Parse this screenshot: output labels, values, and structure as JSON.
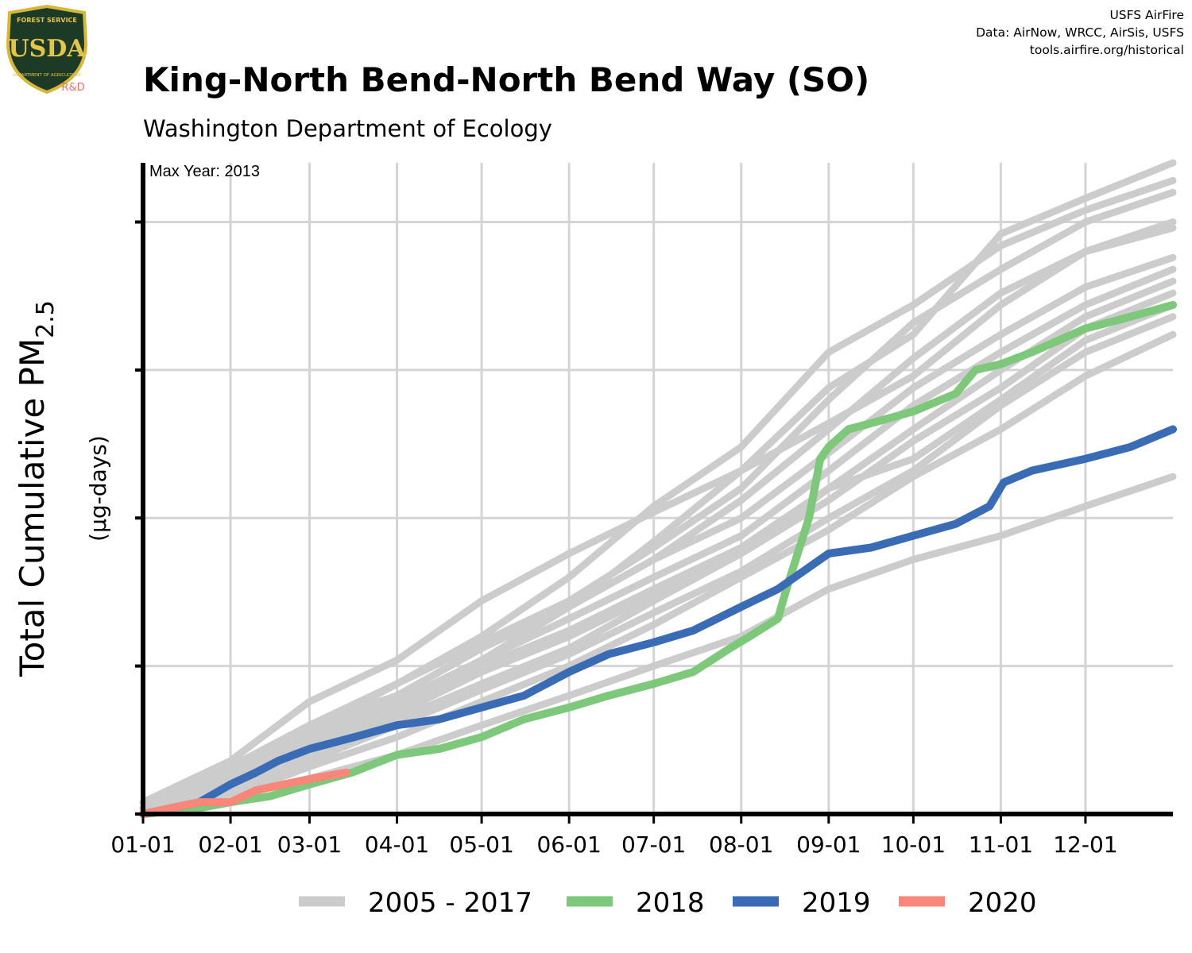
{
  "header": {
    "title": "King-North Bend-North Bend Way (SO)",
    "subtitle": "Washington Department of Ecology",
    "credits": [
      "USFS AirFire",
      "Data: AirNow, WRCC, AirSis, USFS",
      "tools.airfire.org/historical"
    ]
  },
  "logo": {
    "top_text": "FOREST SERVICE",
    "initials": "USDA",
    "bottom_text": "DEPARTMENT OF AGRICULTURE",
    "tag": "R&D"
  },
  "colors": {
    "historical": "#cccccc",
    "y2018": "#7dc87a",
    "y2019": "#3a6bb5",
    "y2020": "#f8877a",
    "axis": "#000000",
    "grid": "#d4d4d4"
  },
  "chart_data": {
    "type": "line",
    "title": "King-North Bend-North Bend Way (SO)",
    "subtitle": "Washington Department of Ecology",
    "ylabel_main": "Total Cumulative PM",
    "ylabel_sub": "2.5",
    "ylabel_units": "(µg-days)",
    "annotation": "Max Year: 2013",
    "x_tick_labels": [
      "01-01",
      "02-01",
      "03-01",
      "04-01",
      "05-01",
      "06-01",
      "07-01",
      "08-01",
      "09-01",
      "10-01",
      "11-01",
      "12-01"
    ],
    "x_tick_days": [
      0,
      31,
      59,
      90,
      120,
      151,
      181,
      212,
      243,
      273,
      304,
      334
    ],
    "x_range_days": [
      0,
      365
    ],
    "y_range": [
      0,
      1.1
    ],
    "y_grid": [
      0.25,
      0.5,
      0.75,
      1.0
    ],
    "y_tick_labels_shown": false,
    "grid": true,
    "legend_position": "bottom",
    "legend": [
      "2005 - 2017",
      "2018",
      "2019",
      "2020"
    ],
    "series": [
      {
        "name": "2005 - 2017",
        "group": "historical",
        "x": [
          0,
          31,
          59,
          90,
          120,
          151,
          181,
          212,
          243,
          273,
          304,
          334,
          365
        ],
        "y": [
          0.02,
          0.09,
          0.19,
          0.26,
          0.36,
          0.44,
          0.51,
          0.58,
          0.72,
          0.81,
          0.98,
          1.04,
          1.1
        ]
      },
      {
        "name": "2005 - 2017",
        "group": "historical",
        "x": [
          0,
          31,
          59,
          90,
          120,
          151,
          181,
          212,
          243,
          273,
          304,
          334,
          365
        ],
        "y": [
          0.01,
          0.08,
          0.15,
          0.22,
          0.3,
          0.4,
          0.52,
          0.62,
          0.78,
          0.86,
          0.96,
          1.02,
          1.07
        ]
      },
      {
        "name": "2005 - 2017",
        "group": "historical",
        "x": [
          0,
          31,
          59,
          90,
          120,
          151,
          181,
          212,
          243,
          273,
          304,
          334,
          365
        ],
        "y": [
          0.01,
          0.07,
          0.14,
          0.22,
          0.29,
          0.36,
          0.45,
          0.55,
          0.7,
          0.83,
          0.92,
          1.0,
          1.05
        ]
      },
      {
        "name": "2005 - 2017",
        "group": "historical",
        "x": [
          0,
          31,
          59,
          90,
          120,
          151,
          181,
          212,
          243,
          273,
          304,
          334,
          365
        ],
        "y": [
          0.01,
          0.07,
          0.15,
          0.2,
          0.28,
          0.35,
          0.46,
          0.58,
          0.66,
          0.74,
          0.86,
          0.95,
          1.0
        ]
      },
      {
        "name": "2005 - 2017",
        "group": "historical",
        "x": [
          0,
          31,
          59,
          90,
          120,
          151,
          181,
          212,
          243,
          273,
          304,
          334,
          365
        ],
        "y": [
          0.01,
          0.06,
          0.13,
          0.2,
          0.28,
          0.35,
          0.43,
          0.53,
          0.65,
          0.77,
          0.88,
          0.95,
          0.99
        ]
      },
      {
        "name": "2005 - 2017",
        "group": "historical",
        "x": [
          0,
          31,
          59,
          90,
          120,
          151,
          181,
          212,
          243,
          273,
          304,
          334,
          365
        ],
        "y": [
          0.01,
          0.06,
          0.12,
          0.19,
          0.26,
          0.35,
          0.43,
          0.5,
          0.61,
          0.72,
          0.81,
          0.89,
          0.94
        ]
      },
      {
        "name": "2005 - 2017",
        "group": "historical",
        "x": [
          0,
          31,
          59,
          90,
          120,
          151,
          181,
          212,
          243,
          273,
          304,
          334,
          365
        ],
        "y": [
          0.01,
          0.05,
          0.12,
          0.18,
          0.26,
          0.33,
          0.4,
          0.47,
          0.58,
          0.69,
          0.78,
          0.86,
          0.92
        ]
      },
      {
        "name": "2005 - 2017",
        "group": "historical",
        "x": [
          0,
          31,
          59,
          90,
          120,
          151,
          181,
          212,
          243,
          273,
          304,
          334,
          365
        ],
        "y": [
          0.01,
          0.05,
          0.11,
          0.18,
          0.25,
          0.31,
          0.38,
          0.45,
          0.55,
          0.65,
          0.75,
          0.84,
          0.9
        ]
      },
      {
        "name": "2005 - 2017",
        "group": "historical",
        "x": [
          0,
          31,
          59,
          90,
          120,
          151,
          181,
          212,
          243,
          273,
          304,
          334,
          365
        ],
        "y": [
          0.01,
          0.05,
          0.11,
          0.17,
          0.24,
          0.3,
          0.37,
          0.44,
          0.53,
          0.63,
          0.72,
          0.82,
          0.88
        ]
      },
      {
        "name": "2005 - 2017",
        "group": "historical",
        "x": [
          0,
          31,
          59,
          90,
          120,
          151,
          181,
          212,
          243,
          273,
          304,
          334,
          365
        ],
        "y": [
          0.0,
          0.04,
          0.1,
          0.16,
          0.22,
          0.28,
          0.36,
          0.44,
          0.55,
          0.6,
          0.7,
          0.8,
          0.86
        ]
      },
      {
        "name": "2005 - 2017",
        "group": "historical",
        "x": [
          0,
          31,
          59,
          90,
          120,
          151,
          181,
          212,
          243,
          273,
          304,
          334,
          365
        ],
        "y": [
          0.0,
          0.04,
          0.09,
          0.15,
          0.21,
          0.27,
          0.34,
          0.41,
          0.5,
          0.58,
          0.69,
          0.78,
          0.84
        ]
      },
      {
        "name": "2005 - 2017",
        "group": "historical",
        "x": [
          0,
          31,
          59,
          90,
          120,
          151,
          181,
          212,
          243,
          273,
          304,
          334,
          365
        ],
        "y": [
          0.0,
          0.03,
          0.08,
          0.13,
          0.19,
          0.25,
          0.32,
          0.4,
          0.48,
          0.57,
          0.65,
          0.74,
          0.81
        ]
      },
      {
        "name": "2005 - 2017",
        "group": "historical",
        "x": [
          0,
          31,
          59,
          90,
          120,
          151,
          181,
          212,
          243,
          273,
          304,
          334,
          365
        ],
        "y": [
          0.0,
          0.03,
          0.06,
          0.1,
          0.15,
          0.2,
          0.25,
          0.3,
          0.38,
          0.43,
          0.47,
          0.52,
          0.57
        ]
      },
      {
        "name": "2018",
        "group": "y2018",
        "x": [
          0,
          20,
          31,
          45,
          59,
          74,
          90,
          105,
          120,
          135,
          151,
          165,
          181,
          195,
          208,
          215,
          225,
          228,
          232,
          236,
          240,
          243,
          250,
          258,
          273,
          288,
          295,
          304,
          315,
          334,
          350,
          365
        ],
        "y": [
          0.0,
          0.01,
          0.02,
          0.03,
          0.05,
          0.07,
          0.1,
          0.11,
          0.13,
          0.16,
          0.18,
          0.2,
          0.22,
          0.24,
          0.28,
          0.3,
          0.33,
          0.38,
          0.44,
          0.5,
          0.6,
          0.62,
          0.65,
          0.66,
          0.68,
          0.71,
          0.75,
          0.76,
          0.78,
          0.82,
          0.84,
          0.86
        ]
      },
      {
        "name": "2019",
        "group": "y2019",
        "x": [
          0,
          20,
          31,
          40,
          48,
          59,
          75,
          90,
          105,
          120,
          135,
          151,
          165,
          181,
          195,
          212,
          225,
          243,
          258,
          273,
          288,
          300,
          305,
          315,
          334,
          350,
          365
        ],
        "y": [
          0.0,
          0.02,
          0.05,
          0.07,
          0.09,
          0.11,
          0.13,
          0.15,
          0.16,
          0.18,
          0.2,
          0.24,
          0.27,
          0.29,
          0.31,
          0.35,
          0.38,
          0.44,
          0.45,
          0.47,
          0.49,
          0.52,
          0.56,
          0.58,
          0.6,
          0.62,
          0.65
        ]
      },
      {
        "name": "2020",
        "group": "y2020",
        "x": [
          0,
          10,
          20,
          31,
          40,
          50,
          60,
          72
        ],
        "y": [
          0.0,
          0.01,
          0.02,
          0.02,
          0.04,
          0.05,
          0.06,
          0.07
        ]
      }
    ]
  }
}
